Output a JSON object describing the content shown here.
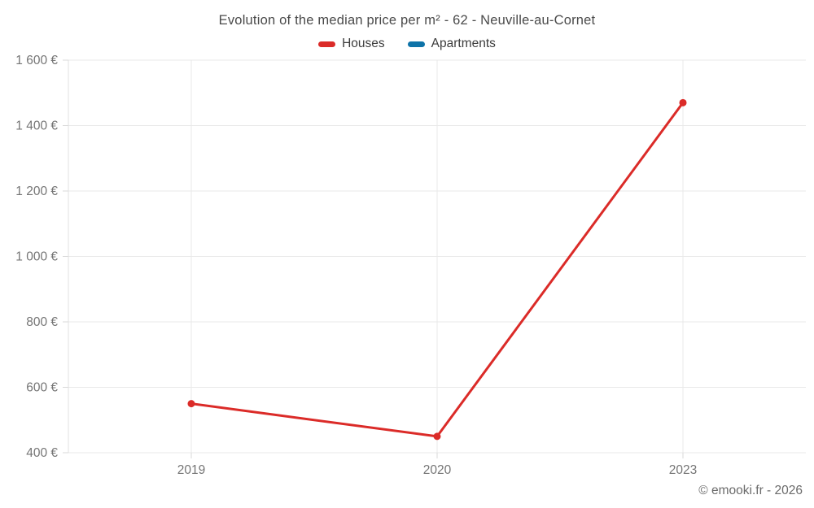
{
  "header": {
    "title": "Evolution of the median price per m² - 62 - Neuville-au-Cornet"
  },
  "footer": {
    "attribution": "© emooki.fr - 2026"
  },
  "colors": {
    "houses": "#db2b28",
    "apartments": "#0e73a8",
    "grid": "#e9e9e9",
    "axis": "#e0e0e0",
    "tick": "#d9d9d9",
    "label": "#757575",
    "title": "#4a4a4a"
  },
  "chart_data": {
    "type": "line",
    "title": "Evolution of the median price per m² - 62 - Neuville-au-Cornet",
    "categories": [
      "2019",
      "2020",
      "2023"
    ],
    "series": [
      {
        "name": "Houses",
        "color": "#db2b28",
        "values": [
          550,
          450,
          1470
        ]
      },
      {
        "name": "Apartments",
        "color": "#0e73a8",
        "values": [
          null,
          null,
          null
        ]
      }
    ],
    "xlabel": "",
    "ylabel": "",
    "ylim": [
      400,
      1600
    ],
    "ytick_step": 200,
    "ytick_labels": [
      "400 €",
      "600 €",
      "800 €",
      "1 000 €",
      "1 200 €",
      "1 400 €",
      "1 600 €"
    ],
    "grid": true,
    "legend_position": "top"
  }
}
